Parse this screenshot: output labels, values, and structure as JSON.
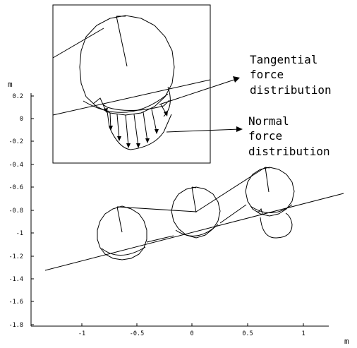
{
  "axes": {
    "y_unit": "m",
    "x_unit": "m",
    "y_ticks": [
      "0.2",
      "0",
      "-0.2",
      "-0.4",
      "-0.6",
      "-0.8",
      "-1",
      "-1.2",
      "-1.4",
      "-1.6",
      "-1.8"
    ],
    "x_ticks": [
      "-1",
      "-0.5",
      "0",
      "0.5",
      "1"
    ]
  },
  "callouts": {
    "tangential": [
      "Tangential",
      "force",
      "distribution"
    ],
    "normal": [
      "Normal",
      "force",
      "distribution"
    ]
  }
}
